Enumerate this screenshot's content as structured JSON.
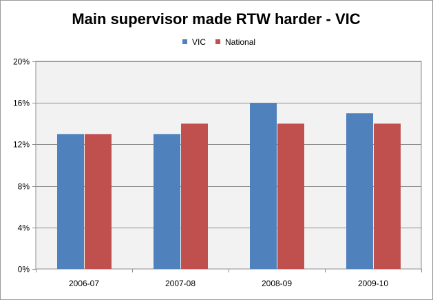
{
  "chart_data": {
    "type": "bar",
    "title": "Main supervisor made RTW harder -  VIC",
    "categories": [
      "2006-07",
      "2007-08",
      "2008-09",
      "2009-10"
    ],
    "series": [
      {
        "name": "VIC",
        "values": [
          13,
          13,
          16,
          15
        ],
        "color": "#4f81bd"
      },
      {
        "name": "National",
        "values": [
          13,
          14,
          14,
          14
        ],
        "color": "#c0504d"
      }
    ],
    "y_ticks": [
      0,
      4,
      8,
      12,
      16,
      20
    ],
    "y_tick_labels": [
      "0%",
      "4%",
      "8%",
      "12%",
      "16%",
      "20%"
    ],
    "ylim": [
      0,
      20
    ],
    "grid": true,
    "legend": "top-center",
    "plot_background": "#f2f2f2",
    "gridline_color": "#8c8c8c"
  }
}
